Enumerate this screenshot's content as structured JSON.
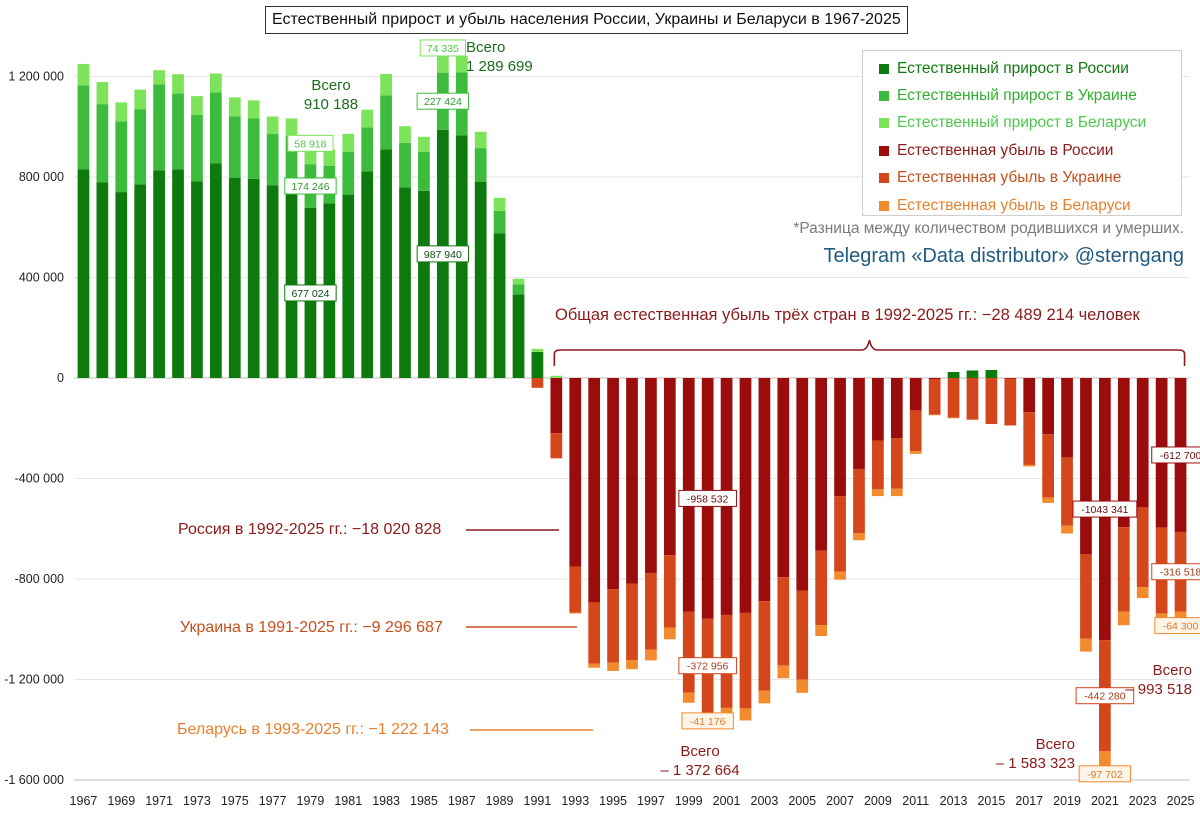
{
  "title": "Естественный прирост и убыль населения России, Украины и Беларуси в 1967-2025",
  "note": "*Разница между количеством родившихся и умерших.",
  "telegram": "Telegram «Data distributor» @sterngang",
  "overall_loss": "Общая естественная убыль трёх стран в 1992-2025 гг.: −28 489 214 человек",
  "country_notes": {
    "russia": "Россия в 1992-2025 гг.: −18 020 828",
    "ukraine": "Украина в 1991-2025 гг.: −9 296 687",
    "belarus": "Беларусь в 1993-2025 гг.: −1 222 143"
  },
  "totals": {
    "y1979_word": "Всего",
    "y1979_value": "910 188",
    "y1986_word": "Всего",
    "y1986_value": "1 289 699",
    "y2000_word": "Всего",
    "y2000_value": "– 1 372 664",
    "y2021_word": "Всего",
    "y2021_value": "– 1 583 323",
    "y2025_word": "Всего",
    "y2025_value": "– 993 518"
  },
  "colors": {
    "ru_growth": "#0e7a0e",
    "ua_growth": "#3dbb3d",
    "by_growth": "#7de35a",
    "ru_loss": "#9b0d0d",
    "ua_loss": "#d4461b",
    "by_loss": "#f28a2e",
    "annotation_red": "#8c1a1a",
    "annotation_orange": "#c84e1a",
    "annotation_light": "#e8802b"
  },
  "legend": [
    {
      "label": "Естественный прирост в России",
      "color": "#0e7a0e",
      "text_color": "#0e7a0e"
    },
    {
      "label": "Естественный прирост в Украине",
      "color": "#3dbb3d",
      "text_color": "#2fb02f"
    },
    {
      "label": "Естественный прирост в Беларуси",
      "color": "#7de35a",
      "text_color": "#4cc94c"
    },
    {
      "label": "Естественная убыль в России",
      "color": "#9b0d0d",
      "text_color": "#8c1a1a"
    },
    {
      "label": "Естественная убыль в Украине",
      "color": "#d4461b",
      "text_color": "#c84e1a"
    },
    {
      "label": "Естественная убыль в Беларуси",
      "color": "#f28a2e",
      "text_color": "#e8802b"
    }
  ],
  "chart_data": {
    "type": "bar",
    "stacked": true,
    "title": "Естественный прирост и убыль населения России, Украины и Беларуси в 1967-2025",
    "ylim": [
      -1600000,
      1400000
    ],
    "y_ticks": [
      -1600000,
      -1200000,
      -800000,
      -400000,
      0,
      400000,
      800000,
      1200000
    ],
    "y_tick_labels": [
      "-1 600 000",
      "-1 200 000",
      "-800 000",
      "-400 000",
      "0",
      "400 000",
      "800 000",
      "1 200 000"
    ],
    "x_tick_labels": [
      "1967",
      "1969",
      "1971",
      "1973",
      "1975",
      "1977",
      "1979",
      "1981",
      "1983",
      "1985",
      "1987",
      "1989",
      "1991",
      "1993",
      "1995",
      "1997",
      "1999",
      "2001",
      "2003",
      "2005",
      "2007",
      "2009",
      "2011",
      "2013",
      "2015",
      "2017",
      "2019",
      "2021",
      "2023",
      "2025"
    ],
    "grid": "horizontal",
    "legend_position": "top-right",
    "categories": [
      "1967",
      "1968",
      "1969",
      "1970",
      "1971",
      "1972",
      "1973",
      "1974",
      "1975",
      "1976",
      "1977",
      "1978",
      "1979",
      "1980",
      "1981",
      "1982",
      "1983",
      "1984",
      "1985",
      "1986",
      "1987",
      "1988",
      "1989",
      "1990",
      "1991",
      "1992",
      "1993",
      "1994",
      "1995",
      "1996",
      "1997",
      "1998",
      "1999",
      "2000",
      "2001",
      "2002",
      "2003",
      "2004",
      "2005",
      "2006",
      "2007",
      "2008",
      "2009",
      "2010",
      "2011",
      "2012",
      "2013",
      "2014",
      "2015",
      "2016",
      "2017",
      "2018",
      "2019",
      "2020",
      "2021",
      "2022",
      "2023",
      "2024",
      "2025"
    ],
    "series": [
      {
        "name": "Естественный прирост в России",
        "color": "#0e7a0e",
        "values": [
          830000,
          778000,
          740000,
          770000,
          826000,
          830000,
          782000,
          855000,
          796000,
          793000,
          766000,
          760000,
          677024,
          695000,
          730000,
          823000,
          910000,
          758000,
          745000,
          987940,
          965000,
          780000,
          575000,
          333000,
          104000,
          0,
          0,
          0,
          0,
          0,
          0,
          0,
          0,
          0,
          0,
          0,
          0,
          0,
          0,
          0,
          0,
          0,
          0,
          0,
          0,
          0,
          24000,
          30000,
          32000,
          0,
          0,
          0,
          0,
          0,
          0,
          0,
          0,
          0,
          0
        ]
      },
      {
        "name": "Естественный прирост в Украине",
        "color": "#3dbb3d",
        "values": [
          335000,
          312000,
          282000,
          300000,
          343000,
          302000,
          265000,
          282000,
          246000,
          240000,
          205000,
          203000,
          174246,
          150000,
          170000,
          175000,
          215000,
          178000,
          155000,
          227424,
          251000,
          135000,
          90000,
          40000,
          0,
          0,
          0,
          0,
          0,
          0,
          0,
          0,
          0,
          0,
          0,
          0,
          0,
          0,
          0,
          0,
          0,
          0,
          0,
          0,
          0,
          0,
          0,
          0,
          0,
          0,
          0,
          0,
          0,
          0,
          0,
          0,
          0,
          0,
          0
        ]
      },
      {
        "name": "Естественный прирост в Беларуси",
        "color": "#7de35a",
        "values": [
          85000,
          88000,
          75000,
          78000,
          56000,
          77000,
          75000,
          75000,
          75000,
          72000,
          70000,
          70000,
          58918,
          65000,
          72000,
          70000,
          85000,
          66000,
          60000,
          74335,
          66000,
          65000,
          52000,
          22000,
          12000,
          9000,
          0,
          0,
          0,
          0,
          0,
          0,
          0,
          0,
          0,
          0,
          0,
          0,
          0,
          0,
          0,
          0,
          0,
          0,
          0,
          0,
          0,
          0,
          0,
          0,
          0,
          0,
          0,
          0,
          0,
          0,
          0,
          0,
          0
        ]
      },
      {
        "name": "Естественная убыль в России",
        "color": "#9b0d0d",
        "values": [
          0,
          0,
          0,
          0,
          0,
          0,
          0,
          0,
          0,
          0,
          0,
          0,
          0,
          0,
          0,
          0,
          0,
          0,
          0,
          0,
          0,
          0,
          0,
          0,
          0,
          -219800,
          -750300,
          -893200,
          -840000,
          -818000,
          -776000,
          -705000,
          -929600,
          -958532,
          -943000,
          -935000,
          -888000,
          -793000,
          -846000,
          -687000,
          -470000,
          -362000,
          -249000,
          -240000,
          -129000,
          -4000,
          0,
          0,
          0,
          -2000,
          -136000,
          -224000,
          -316000,
          -702000,
          -1043341,
          -594000,
          -515000,
          -596000,
          -612700
        ]
      },
      {
        "name": "Естественная убыль в Украине",
        "color": "#d4461b",
        "values": [
          0,
          0,
          0,
          0,
          0,
          0,
          0,
          0,
          0,
          0,
          0,
          0,
          0,
          0,
          0,
          0,
          0,
          0,
          0,
          0,
          0,
          0,
          0,
          0,
          -39000,
          -100000,
          -184000,
          -243000,
          -293000,
          -305000,
          -305000,
          -288000,
          -322000,
          -372956,
          -370000,
          -380000,
          -356000,
          -351000,
          -355000,
          -297000,
          -300000,
          -255000,
          -194000,
          -201000,
          -162000,
          -142000,
          -158000,
          -166000,
          -183000,
          -187000,
          -210000,
          -252000,
          -272000,
          -336000,
          -442280,
          -336000,
          -317000,
          -341000,
          -316518
        ]
      },
      {
        "name": "Естественная убыль в Беларуси",
        "color": "#f28a2e",
        "values": [
          0,
          0,
          0,
          0,
          0,
          0,
          0,
          0,
          0,
          0,
          0,
          0,
          0,
          0,
          0,
          0,
          0,
          0,
          0,
          0,
          0,
          0,
          0,
          0,
          0,
          0,
          -3000,
          -17000,
          -33000,
          -36000,
          -43000,
          -47000,
          -41000,
          -41176,
          -41000,
          -48000,
          -51000,
          -51000,
          -52000,
          -43000,
          -33000,
          -29000,
          -27000,
          -29000,
          -11000,
          -2000,
          -1000,
          0,
          0,
          0,
          -6000,
          -21000,
          -31000,
          -51000,
          -97702,
          -54000,
          -44000,
          -61000,
          -64300
        ]
      }
    ],
    "data_labels": [
      {
        "category": "1979",
        "series": "Естественный прирост в России",
        "text": "677 024"
      },
      {
        "category": "1979",
        "series": "Естественный прирост в Украине",
        "text": "174 246"
      },
      {
        "category": "1979",
        "series": "Естественный прирост в Беларуси",
        "text": "58 918"
      },
      {
        "category": "1986",
        "series": "Естественный прирост в России",
        "text": "987 940"
      },
      {
        "category": "1986",
        "series": "Естественный прирост в Украине",
        "text": "227 424"
      },
      {
        "category": "1986",
        "series": "Естественный прирост в Беларуси",
        "text": "74 335"
      },
      {
        "category": "2000",
        "series": "Естественная убыль в России",
        "text": "-958 532"
      },
      {
        "category": "2000",
        "series": "Естественная убыль в Украине",
        "text": "-372 956"
      },
      {
        "category": "2000",
        "series": "Естественная убыль в Беларуси",
        "text": "-41 176"
      },
      {
        "category": "2021",
        "series": "Естественная убыль в России",
        "text": "-1043 341"
      },
      {
        "category": "2021",
        "series": "Естественная убыль в Украине",
        "text": "-442 280"
      },
      {
        "category": "2021",
        "series": "Естественная убыль в Беларуси",
        "text": "-97 702"
      },
      {
        "category": "2025",
        "series": "Естественная убыль в России",
        "text": "-612 700"
      },
      {
        "category": "2025",
        "series": "Естественная убыль в Украине",
        "text": "-316 518"
      },
      {
        "category": "2025",
        "series": "Естественная убыль в Беларуси",
        "text": "-64 300"
      }
    ]
  }
}
